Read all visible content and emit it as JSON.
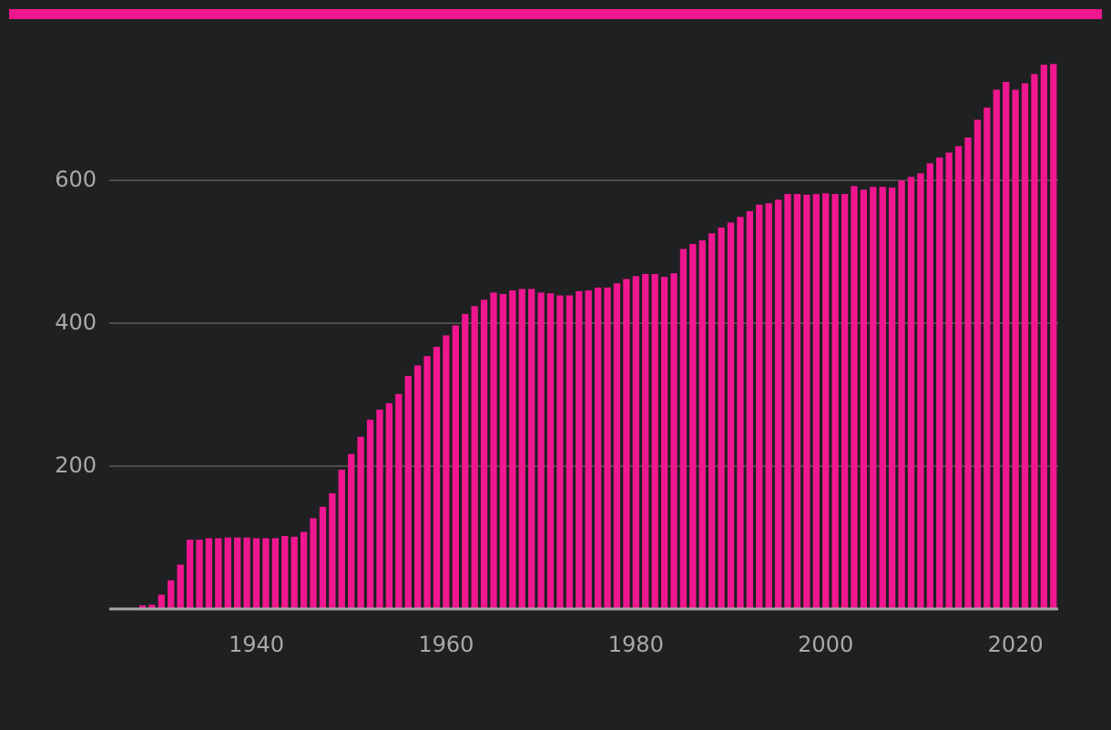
{
  "chart_data": {
    "type": "bar",
    "color": "#f0168f",
    "x": [
      1928,
      1929,
      1930,
      1931,
      1932,
      1933,
      1934,
      1935,
      1936,
      1937,
      1938,
      1939,
      1940,
      1941,
      1942,
      1943,
      1944,
      1945,
      1946,
      1947,
      1948,
      1949,
      1950,
      1951,
      1952,
      1953,
      1954,
      1955,
      1956,
      1957,
      1958,
      1959,
      1960,
      1961,
      1962,
      1963,
      1964,
      1965,
      1966,
      1967,
      1968,
      1969,
      1970,
      1971,
      1972,
      1973,
      1974,
      1975,
      1976,
      1977,
      1978,
      1979,
      1980,
      1981,
      1982,
      1983,
      1984,
      1985,
      1986,
      1987,
      1988,
      1989,
      1990,
      1991,
      1992,
      1993,
      1994,
      1995,
      1996,
      1997,
      1998,
      1999,
      2000,
      2001,
      2002,
      2003,
      2004,
      2005,
      2006,
      2007,
      2008,
      2009,
      2010,
      2011,
      2012,
      2013,
      2014,
      2015,
      2016,
      2017,
      2018,
      2019,
      2020,
      2021,
      2022,
      2023,
      2024
    ],
    "values": [
      5,
      6,
      20,
      40,
      62,
      97,
      97,
      99,
      99,
      100,
      100,
      100,
      99,
      99,
      99,
      102,
      101,
      108,
      127,
      143,
      162,
      195,
      217,
      241,
      265,
      279,
      288,
      301,
      326,
      341,
      354,
      367,
      383,
      397,
      413,
      424,
      433,
      443,
      441,
      446,
      448,
      448,
      443,
      442,
      439,
      439,
      445,
      446,
      450,
      450,
      456,
      462,
      466,
      469,
      469,
      465,
      470,
      504,
      511,
      516,
      526,
      534,
      541,
      549,
      557,
      566,
      568,
      573,
      581,
      581,
      580,
      581,
      582,
      581,
      581,
      592,
      587,
      591,
      591,
      590,
      600,
      605,
      610,
      624,
      632,
      639,
      648,
      660,
      685,
      702,
      727,
      738,
      727,
      736,
      749,
      762,
      763
    ],
    "xlim": [
      1924.5,
      2024.5
    ],
    "xticks": [
      1940,
      1960,
      1980,
      2000,
      2020
    ],
    "ylim": [
      0,
      780
    ],
    "yticks": [
      200,
      400,
      600
    ],
    "grid": true
  }
}
